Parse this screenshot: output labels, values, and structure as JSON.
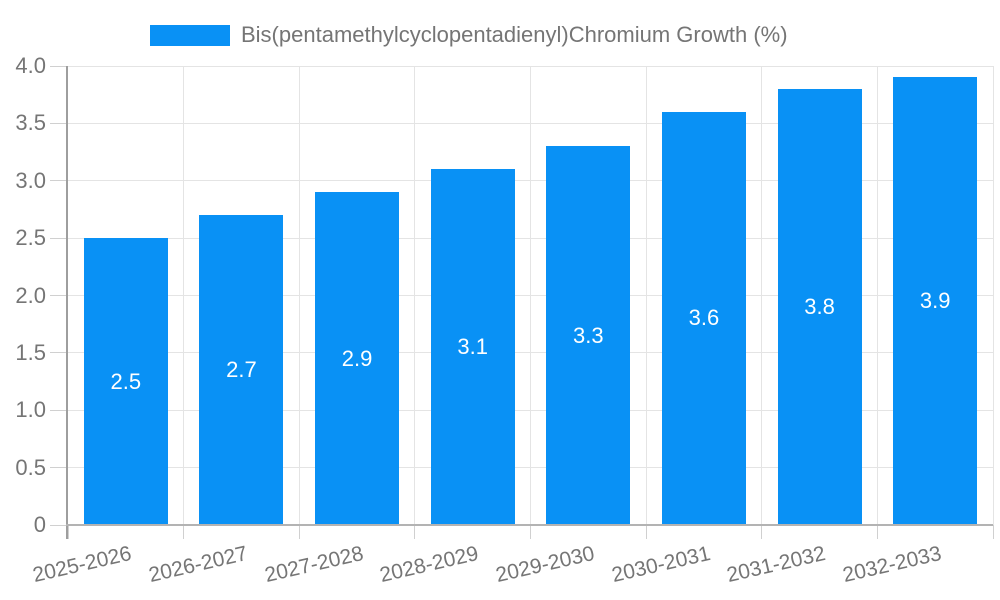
{
  "chart_data": {
    "type": "bar",
    "title": "Bis(pentamethylcyclopentadienyl)Chromium Growth (%)",
    "legend_position": "top",
    "categories": [
      "2025-2026",
      "2026-2027",
      "2027-2028",
      "2028-2029",
      "2029-2030",
      "2030-2031",
      "2031-2032",
      "2032-2033"
    ],
    "values": [
      2.5,
      2.7,
      2.9,
      3.1,
      3.3,
      3.6,
      3.8,
      3.9
    ],
    "value_labels": [
      "2.5",
      "2.7",
      "2.9",
      "3.1",
      "3.3",
      "3.6",
      "3.8",
      "3.9"
    ],
    "xlabel": "",
    "ylabel": "",
    "ylim": [
      0,
      4
    ],
    "y_ticks": [
      0,
      0.5,
      1,
      1.5,
      2,
      2.5,
      3,
      3.5,
      4
    ],
    "y_tick_labels": [
      "0",
      "0.5",
      "1.0",
      "1.5",
      "2.0",
      "2.5",
      "3.0",
      "3.5",
      "4.0"
    ],
    "grid": true,
    "colors": {
      "bar": "#0991f5",
      "bar_label": "#ffffff",
      "text": "#757575",
      "grid": "#e4e4e4",
      "tick": "#d0d0d0",
      "y_axis": "#9e9e9e",
      "x_axis": "#b3b3b3",
      "background": "#ffffff"
    }
  }
}
